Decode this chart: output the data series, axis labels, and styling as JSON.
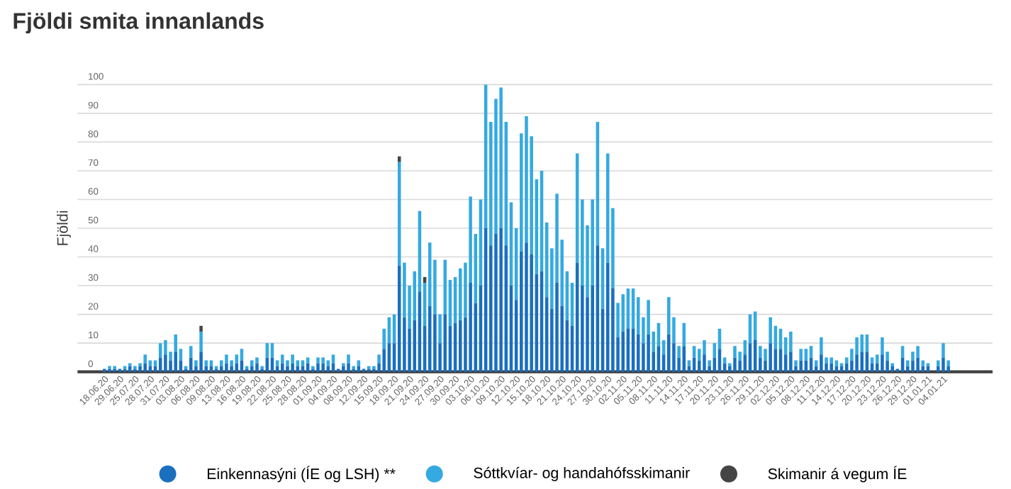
{
  "chart_data": {
    "type": "bar",
    "title": "Fjöldi smita innanlands",
    "ylabel": "Fjöldi",
    "stacked": true,
    "grid": "y",
    "legend": "bottom",
    "ylim": [
      0,
      100
    ],
    "yticks": [
      0,
      10,
      20,
      30,
      40,
      50,
      60,
      70,
      80,
      90,
      100
    ],
    "categories": [
      "18.06.20",
      null,
      null,
      "29.06.20",
      null,
      null,
      "25.07.20",
      null,
      null,
      "28.07.20",
      null,
      null,
      "31.07.20",
      null,
      null,
      "03.08.20",
      null,
      null,
      "06.08.20",
      null,
      null,
      "09.08.20",
      null,
      null,
      "13.08.20",
      null,
      null,
      "16.08.20",
      null,
      null,
      "19.08.20",
      null,
      null,
      "22.08.20",
      null,
      null,
      "25.08.20",
      null,
      null,
      "28.08.20",
      null,
      null,
      "01.09.20",
      null,
      null,
      "04.09.20",
      null,
      null,
      "08.09.20",
      null,
      null,
      "12.09.20",
      null,
      null,
      "15.09.20",
      null,
      null,
      "18.09.20",
      null,
      null,
      "21.09.20",
      null,
      null,
      "24.09.20",
      null,
      null,
      "27.09.20",
      null,
      null,
      "30.09.20",
      null,
      null,
      "03.10.20",
      null,
      null,
      "06.10.20",
      null,
      null,
      "09.10.20",
      null,
      null,
      "12.10.20",
      null,
      null,
      "15.10.20",
      null,
      null,
      "18.10.20",
      null,
      null,
      "21.10.20",
      null,
      null,
      "24.10.20",
      null,
      null,
      "27.10.20",
      null,
      null,
      "30.10.20",
      null,
      null,
      "02.11.20",
      null,
      null,
      "05.11.20",
      null,
      null,
      "08.11.20",
      null,
      null,
      "11.11.20",
      null,
      null,
      "14.11.20",
      null,
      null,
      "17.11.20",
      null,
      null,
      "20.11.20",
      null,
      null,
      "23.11.20",
      null,
      null,
      "26.11.20",
      null,
      null,
      "29.11.20",
      null,
      null,
      "02.12.20",
      null,
      null,
      "05.12.20",
      null,
      null,
      "08.12.20",
      null,
      null,
      "11.12.20",
      null,
      null,
      "14.12.20",
      null,
      null,
      "17.12.20",
      null,
      null,
      "20.12.20",
      null,
      null,
      "23.12.20",
      null,
      null,
      "26.12.20",
      null,
      null,
      "29.12.20",
      null,
      null,
      "01.01.21",
      null,
      null,
      "04.01.21",
      null
    ],
    "series": [
      {
        "name": "Einkennasýni (ÍE og LSH) **",
        "color": "#1a6fbf",
        "values": [
          1,
          1,
          1,
          1,
          1,
          2,
          1,
          2,
          3,
          2,
          2,
          5,
          6,
          4,
          7,
          4,
          1,
          5,
          2,
          7,
          2,
          2,
          1,
          2,
          3,
          2,
          3,
          4,
          1,
          2,
          3,
          1,
          5,
          5,
          2,
          3,
          2,
          3,
          2,
          2,
          3,
          1,
          3,
          3,
          2,
          3,
          1,
          2,
          3,
          1,
          2,
          1,
          1,
          1,
          3,
          8,
          10,
          10,
          37,
          19,
          15,
          18,
          28,
          16,
          23,
          20,
          10,
          20,
          16,
          17,
          18,
          19,
          31,
          24,
          30,
          50,
          44,
          48,
          50,
          44,
          30,
          25,
          42,
          45,
          41,
          34,
          35,
          26,
          22,
          31,
          23,
          18,
          16,
          38,
          30,
          26,
          30,
          44,
          22,
          38,
          29,
          12,
          14,
          15,
          15,
          13,
          10,
          13,
          7,
          9,
          6,
          13,
          10,
          5,
          9,
          2,
          5,
          4,
          6,
          2,
          5,
          8,
          3,
          2,
          5,
          4,
          6,
          10,
          11,
          5,
          4,
          10,
          8,
          8,
          6,
          7,
          2,
          4,
          4,
          5,
          2,
          6,
          3,
          3,
          2,
          2,
          3,
          4,
          6,
          7,
          7,
          3,
          3,
          6,
          4,
          2,
          1,
          5,
          2,
          4,
          5,
          2,
          2,
          0,
          2,
          5,
          2
        ]
      },
      {
        "name": "Sóttkvíar- og handahófsskimanir",
        "color": "#35a9e1",
        "values": [
          0,
          1,
          1,
          0,
          1,
          1,
          1,
          1,
          3,
          2,
          2,
          5,
          5,
          3,
          6,
          4,
          1,
          4,
          2,
          7,
          2,
          2,
          1,
          2,
          3,
          2,
          3,
          4,
          1,
          2,
          2,
          1,
          5,
          5,
          2,
          3,
          2,
          3,
          2,
          2,
          2,
          1,
          2,
          2,
          2,
          3,
          0,
          1,
          3,
          1,
          2,
          0,
          1,
          1,
          3,
          7,
          9,
          10,
          36,
          19,
          15,
          17,
          28,
          15,
          22,
          19,
          10,
          19,
          16,
          16,
          18,
          19,
          30,
          24,
          30,
          50,
          43,
          47,
          49,
          43,
          29,
          25,
          41,
          44,
          41,
          33,
          35,
          26,
          21,
          31,
          23,
          17,
          15,
          38,
          30,
          25,
          30,
          43,
          21,
          38,
          28,
          12,
          13,
          14,
          14,
          13,
          9,
          12,
          7,
          8,
          5,
          13,
          9,
          4,
          8,
          2,
          4,
          4,
          5,
          2,
          5,
          7,
          2,
          1,
          4,
          3,
          5,
          10,
          10,
          4,
          4,
          9,
          8,
          7,
          6,
          7,
          2,
          4,
          4,
          4,
          2,
          6,
          2,
          2,
          2,
          1,
          2,
          4,
          6,
          6,
          6,
          2,
          3,
          6,
          3,
          1,
          0,
          4,
          2,
          3,
          4,
          2,
          1,
          0,
          2,
          5,
          2
        ]
      },
      {
        "name": "Skimanir á vegum ÍE",
        "color": "#454545",
        "values": [
          0,
          0,
          0,
          0,
          0,
          0,
          0,
          0,
          0,
          0,
          0,
          0,
          0,
          0,
          0,
          0,
          0,
          0,
          0,
          2,
          0,
          0,
          0,
          0,
          0,
          0,
          0,
          0,
          0,
          0,
          0,
          0,
          0,
          0,
          0,
          0,
          0,
          0,
          0,
          0,
          0,
          0,
          0,
          0,
          0,
          0,
          0,
          0,
          0,
          0,
          0,
          0,
          0,
          0,
          0,
          0,
          0,
          0,
          2,
          0,
          0,
          0,
          0,
          2,
          0,
          0,
          0,
          0,
          0,
          0,
          0,
          0,
          0,
          0,
          0,
          0,
          0,
          0,
          0,
          0,
          0,
          0,
          0,
          0,
          0,
          0,
          0,
          0,
          0,
          0,
          0,
          0,
          0,
          0,
          0,
          0,
          0,
          0,
          0,
          0,
          0,
          0,
          0,
          0,
          0,
          0,
          0,
          0,
          0,
          0,
          0,
          0,
          0,
          0,
          0,
          0,
          0,
          0,
          0,
          0,
          0,
          0,
          0,
          0,
          0,
          0,
          0,
          0,
          0,
          0,
          0,
          0,
          0,
          0,
          0,
          0,
          0,
          0,
          0,
          0,
          0,
          0,
          0,
          0,
          0,
          0,
          0,
          0,
          0,
          0,
          0,
          0,
          0,
          0,
          0,
          0,
          0,
          0,
          0,
          0,
          0,
          0,
          0,
          0,
          0,
          0,
          0
        ]
      }
    ]
  }
}
